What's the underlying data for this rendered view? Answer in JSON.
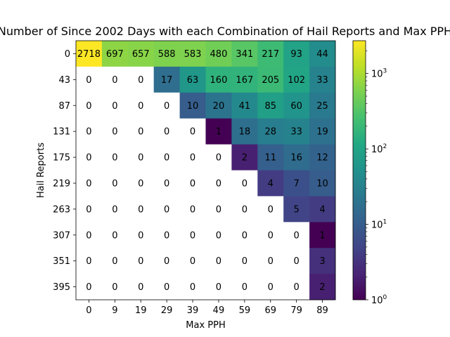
{
  "chart_data": {
    "type": "heatmap",
    "title": "Number of Since 2002 Days with each Combination of Hail Reports and Max PPH",
    "xlabel": "Max PPH",
    "ylabel": "Hail Reports",
    "x_categories": [
      "0",
      "9",
      "19",
      "29",
      "39",
      "49",
      "59",
      "69",
      "79",
      "89"
    ],
    "y_categories": [
      "0",
      "43",
      "87",
      "131",
      "175",
      "219",
      "263",
      "307",
      "351",
      "395"
    ],
    "values": [
      [
        2718,
        697,
        657,
        588,
        583,
        480,
        341,
        217,
        93,
        44
      ],
      [
        0,
        0,
        0,
        17,
        63,
        160,
        167,
        205,
        102,
        33
      ],
      [
        0,
        0,
        0,
        0,
        10,
        20,
        41,
        85,
        60,
        25
      ],
      [
        0,
        0,
        0,
        0,
        0,
        1,
        18,
        28,
        33,
        19
      ],
      [
        0,
        0,
        0,
        0,
        0,
        0,
        2,
        11,
        16,
        12
      ],
      [
        0,
        0,
        0,
        0,
        0,
        0,
        0,
        4,
        7,
        10
      ],
      [
        0,
        0,
        0,
        0,
        0,
        0,
        0,
        0,
        5,
        4
      ],
      [
        0,
        0,
        0,
        0,
        0,
        0,
        0,
        0,
        0,
        1
      ],
      [
        0,
        0,
        0,
        0,
        0,
        0,
        0,
        0,
        0,
        3
      ],
      [
        0,
        0,
        0,
        0,
        0,
        0,
        0,
        0,
        0,
        2
      ]
    ],
    "color_scale": "log",
    "colormap": "viridis",
    "zero_color": "#ffffff",
    "vmin": 1,
    "vmax": 2718,
    "colorbar_ticks": [
      {
        "value": 1,
        "base": "10",
        "exp": "0"
      },
      {
        "value": 10,
        "base": "10",
        "exp": "1"
      },
      {
        "value": 100,
        "base": "10",
        "exp": "2"
      },
      {
        "value": 1000,
        "base": "10",
        "exp": "3"
      }
    ],
    "grid": false,
    "cell_label_color": "#000000"
  }
}
